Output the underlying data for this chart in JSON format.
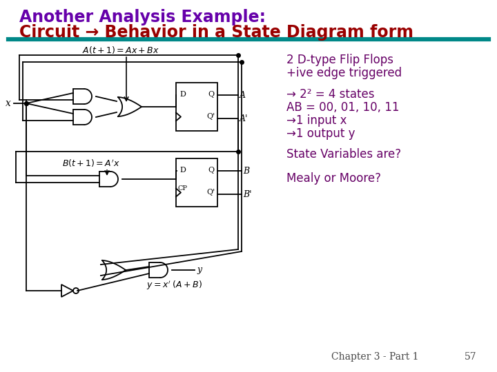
{
  "title_line1": "Another Analysis Example:",
  "title_line2": "Circuit → Behavior in a State Diagram form",
  "title_color1": "#6600aa",
  "title_color2": "#990000",
  "separator_color": "#008888",
  "bg_color": "#ffffff",
  "text_color_purple": "#660066",
  "text_color_dark": "#444444",
  "info_line1": "2 D-type Flip Flops",
  "info_line2": "+ive edge triggered",
  "info_line3": "→ 2² = 4 states",
  "info_line4": "AB = 00, 01, 10, 11",
  "info_line5": "→1 input x",
  "info_line6": "→1 output y",
  "info_line7": "State Variables are?",
  "info_line8": "Mealy or Moore?",
  "chapter_text": "Chapter 3 - Part 1",
  "page_num": "57"
}
